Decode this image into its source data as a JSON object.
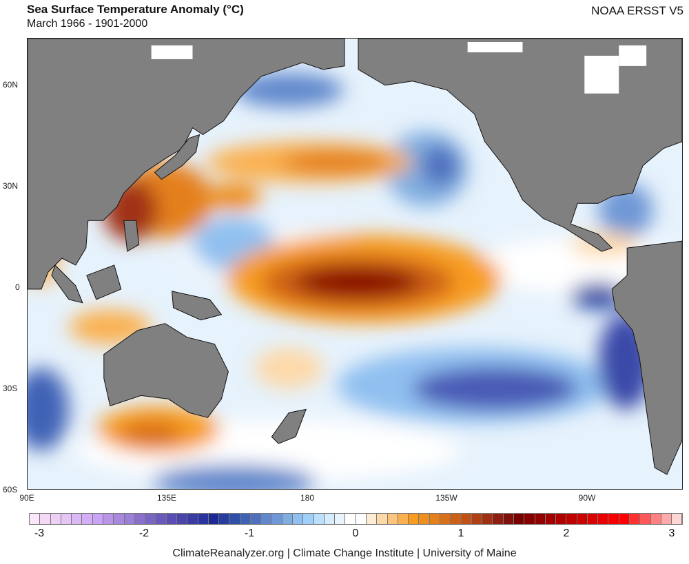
{
  "header": {
    "title": "Sea Surface Temperature Anomaly (°C)",
    "subtitle": "March 1966 - 1901-2000",
    "dataset": "NOAA ERSST V5"
  },
  "axes": {
    "lat_labels": [
      "60N",
      "30N",
      "0",
      "30S",
      "60S"
    ],
    "lon_labels": [
      "90E",
      "135E",
      "180",
      "135W",
      "90W"
    ]
  },
  "colorbar": {
    "ticks": [
      "-3",
      "-2",
      "-1",
      "0",
      "1",
      "2",
      "3"
    ],
    "colors": [
      "#fbe6fb",
      "#f5d9f7",
      "#eed0f6",
      "#e6c6f5",
      "#dcb9f5",
      "#d4aef7",
      "#c9a3f5",
      "#b994e8",
      "#a889de",
      "#9a80d8",
      "#8a70cc",
      "#7b65c4",
      "#6a5abb",
      "#5a4db5",
      "#4a44ab",
      "#3a3ca3",
      "#2a34a0",
      "#1e2a94",
      "#263c9e",
      "#3050a8",
      "#4062b5",
      "#5070be",
      "#6088cc",
      "#7098d6",
      "#80aee0",
      "#90c0f0",
      "#a0d0fa",
      "#bce0fc",
      "#d6ecfc",
      "#eaf4fc",
      "#ffffff",
      "#ffffff",
      "#feecd4",
      "#fdd9a8",
      "#fcc47c",
      "#fab050",
      "#f89c20",
      "#ee8e1e",
      "#e4801c",
      "#d8701a",
      "#cc6018",
      "#c05016",
      "#b04014",
      "#a03012",
      "#901e0e",
      "#80100a",
      "#780000",
      "#860000",
      "#940000",
      "#a20000",
      "#b00000",
      "#be0000",
      "#cc0000",
      "#da0000",
      "#e80000",
      "#f60000",
      "#ff0000",
      "#ff3030",
      "#ff5858",
      "#ff8080",
      "#ffaaaa",
      "#ffd6d6"
    ]
  },
  "land_color": "#808080",
  "footer": {
    "credit": "ClimateReanalyzer.org | Climate Change Institute | University of Maine"
  }
}
